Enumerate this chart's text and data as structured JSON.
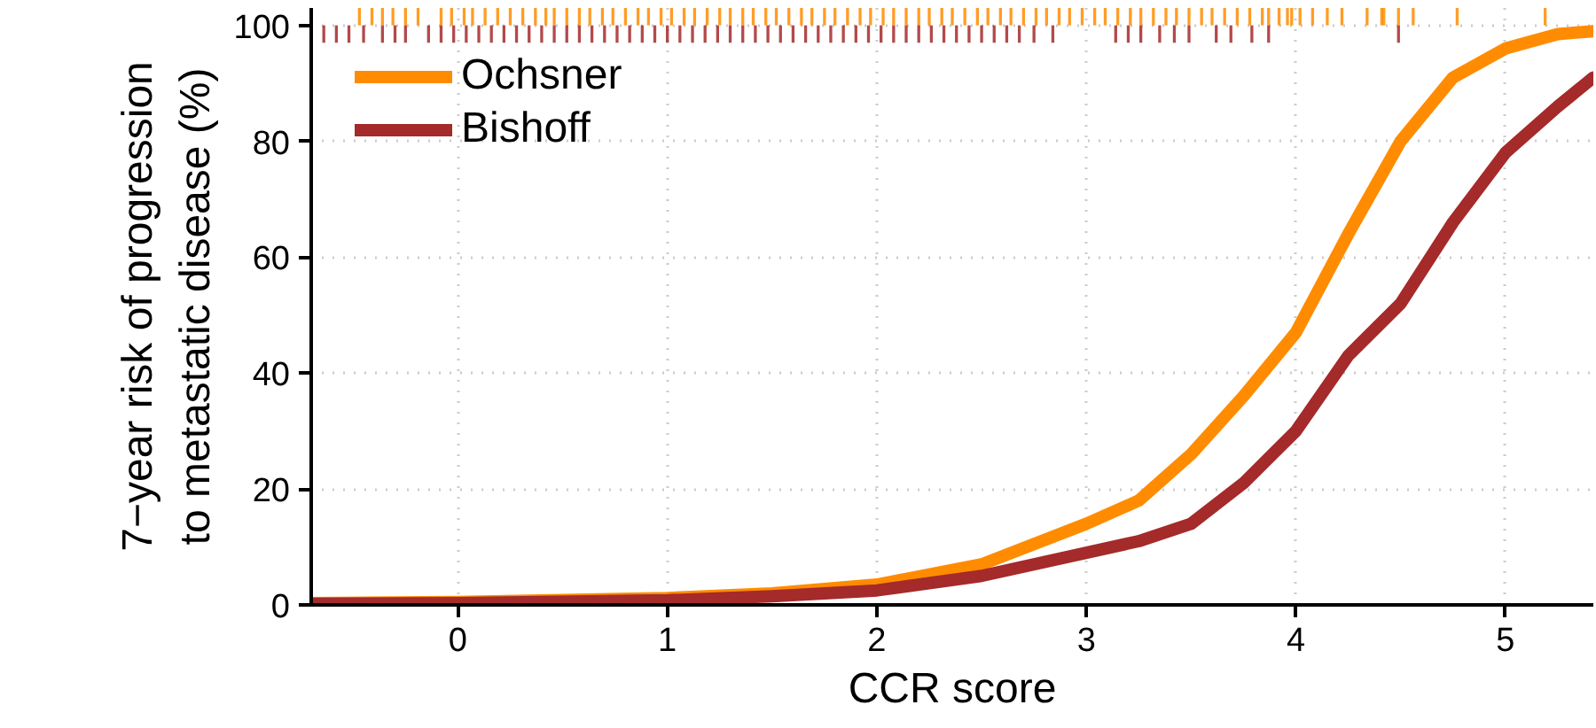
{
  "chart_data": {
    "type": "line",
    "xlabel": "CCR score",
    "ylabel": "7−year risk of progression\nto metastatic disease (%)",
    "xlim": [
      -0.7,
      5.42
    ],
    "ylim": [
      0,
      103
    ],
    "xticks": [
      0,
      1,
      2,
      3,
      4,
      5
    ],
    "yticks": [
      0,
      20,
      40,
      60,
      80,
      100
    ],
    "grid": true,
    "legend": "top left",
    "line_style": "solid",
    "series": [
      {
        "name": "Ochsner",
        "color": "#ff8c00",
        "x": [
          -0.7,
          0,
          1,
          1.5,
          2,
          2.5,
          3,
          3.25,
          3.5,
          3.75,
          4,
          4.25,
          4.5,
          4.75,
          5,
          5.25,
          5.42
        ],
        "values": [
          0.3,
          0.5,
          1.2,
          2,
          3.5,
          7,
          14,
          18,
          26,
          36,
          47,
          64,
          80,
          91,
          96,
          98.5,
          99
        ]
      },
      {
        "name": "Bishoff",
        "color": "#a52a2a",
        "x": [
          -0.7,
          0,
          1,
          1.5,
          2,
          2.5,
          3,
          3.25,
          3.5,
          3.75,
          4,
          4.25,
          4.5,
          4.75,
          5,
          5.25,
          5.42
        ],
        "values": [
          0.2,
          0.3,
          0.8,
          1.5,
          2.5,
          5,
          9,
          11,
          14,
          21,
          30,
          43,
          52,
          66,
          78,
          86,
          91
        ]
      },
      {
        "type": "bar",
        "color": "#ff8c00",
        "x": [
          -0.47,
          -0.41,
          -0.36,
          -0.31,
          -0.25,
          -0.19,
          -0.08,
          -0.03,
          0.03,
          0.07,
          0.13,
          0.19,
          0.25,
          0.31,
          0.37,
          0.42,
          0.46,
          0.52,
          0.58,
          0.63,
          0.69,
          0.74,
          0.8,
          0.86,
          0.91,
          0.97,
          1.02,
          1.08,
          1.13,
          1.19,
          1.25,
          1.3,
          1.36,
          1.41,
          1.47,
          1.52,
          1.58,
          1.64,
          1.69,
          1.75,
          1.8,
          1.86,
          1.92,
          1.97,
          2.03,
          2.08,
          2.14,
          2.2,
          2.25,
          2.31,
          2.36,
          2.42,
          2.48,
          2.53,
          2.59,
          2.64,
          2.7,
          2.76,
          2.81,
          2.87,
          2.92,
          2.98,
          3.04,
          3.09,
          3.15,
          3.21,
          3.26,
          3.32,
          3.38,
          3.43,
          3.49,
          3.55,
          3.6,
          3.66,
          3.72,
          3.78,
          3.84,
          3.87,
          3.92,
          3.96,
          3.98,
          4.02,
          4.08,
          4.15,
          4.22,
          4.34,
          4.41,
          4.42,
          4.49,
          4.56,
          4.77,
          5.19
        ],
        "base": [
          100,
          100,
          100,
          100,
          100,
          100,
          100,
          100,
          100,
          100,
          100,
          100,
          100,
          100,
          100,
          100,
          100,
          100,
          100,
          100,
          100,
          100,
          100,
          100,
          100,
          100,
          100,
          100,
          100,
          100,
          100,
          100,
          100,
          100,
          100,
          100,
          100,
          100,
          100,
          100,
          100,
          100,
          100,
          100,
          100,
          100,
          100,
          100,
          100,
          100,
          100,
          100,
          100,
          100,
          100,
          100,
          100,
          100,
          100,
          100,
          100,
          100,
          100,
          100,
          100,
          100,
          100,
          100,
          100,
          100,
          100,
          100,
          100,
          100,
          100,
          100,
          100,
          100,
          100,
          100,
          100,
          100,
          100,
          100,
          100,
          100,
          100,
          100,
          100,
          100,
          100,
          100
        ],
        "values": [
          3,
          3,
          3,
          3,
          3,
          3,
          3,
          3,
          3,
          3,
          3,
          3,
          3,
          3,
          3,
          3,
          3,
          3,
          3,
          3,
          3,
          3,
          3,
          3,
          3,
          3,
          3,
          3,
          3,
          3,
          3,
          3,
          3,
          3,
          3,
          3,
          3,
          3,
          3,
          3,
          3,
          3,
          3,
          3,
          3,
          3,
          3,
          3,
          3,
          3,
          3,
          3,
          3,
          3,
          3,
          3,
          3,
          3,
          3,
          3,
          3,
          3,
          3,
          3,
          3,
          3,
          3,
          3,
          3,
          3,
          3,
          3,
          3,
          3,
          3,
          3,
          3,
          3,
          3,
          3,
          3,
          3,
          3,
          3,
          3,
          3,
          3,
          3,
          3,
          3,
          3,
          3
        ]
      },
      {
        "type": "bar",
        "color": "#a52a2a",
        "x": [
          -0.64,
          -0.58,
          -0.52,
          -0.45,
          -0.36,
          -0.3,
          -0.25,
          -0.14,
          -0.08,
          -0.02,
          0.04,
          0.1,
          0.16,
          0.22,
          0.28,
          0.34,
          0.4,
          0.46,
          0.52,
          0.58,
          0.64,
          0.7,
          0.76,
          0.82,
          0.88,
          0.94,
          1.0,
          1.06,
          1.12,
          1.18,
          1.24,
          1.3,
          1.36,
          1.42,
          1.48,
          1.54,
          1.6,
          1.66,
          1.72,
          1.78,
          1.84,
          1.9,
          1.96,
          2.02,
          2.08,
          2.14,
          2.2,
          2.26,
          2.32,
          2.38,
          2.44,
          2.5,
          2.56,
          2.62,
          2.68,
          2.75,
          2.84,
          3.14,
          3.2,
          3.26,
          3.35,
          3.42,
          3.49,
          3.62,
          3.69,
          3.79,
          3.87,
          4.49
        ],
        "base": [
          97,
          97,
          97,
          97,
          97,
          97,
          97,
          97,
          97,
          97,
          97,
          97,
          97,
          97,
          97,
          97,
          97,
          97,
          97,
          97,
          97,
          97,
          97,
          97,
          97,
          97,
          97,
          97,
          97,
          97,
          97,
          97,
          97,
          97,
          97,
          97,
          97,
          97,
          97,
          97,
          97,
          97,
          97,
          97,
          97,
          97,
          97,
          97,
          97,
          97,
          97,
          97,
          97,
          97,
          97,
          97,
          97,
          97,
          97,
          97,
          97,
          97,
          97,
          97,
          97,
          97,
          97,
          97
        ],
        "values": [
          3,
          3,
          3,
          3,
          3,
          3,
          3,
          3,
          3,
          3,
          3,
          3,
          3,
          3,
          3,
          3,
          3,
          3,
          3,
          3,
          3,
          3,
          3,
          3,
          3,
          3,
          3,
          3,
          3,
          3,
          3,
          3,
          3,
          3,
          3,
          3,
          3,
          3,
          3,
          3,
          3,
          3,
          3,
          3,
          3,
          3,
          3,
          3,
          3,
          3,
          3,
          3,
          3,
          3,
          3,
          3,
          3,
          3,
          3,
          3,
          3,
          3,
          3,
          3,
          3,
          3,
          3,
          3
        ]
      }
    ]
  }
}
